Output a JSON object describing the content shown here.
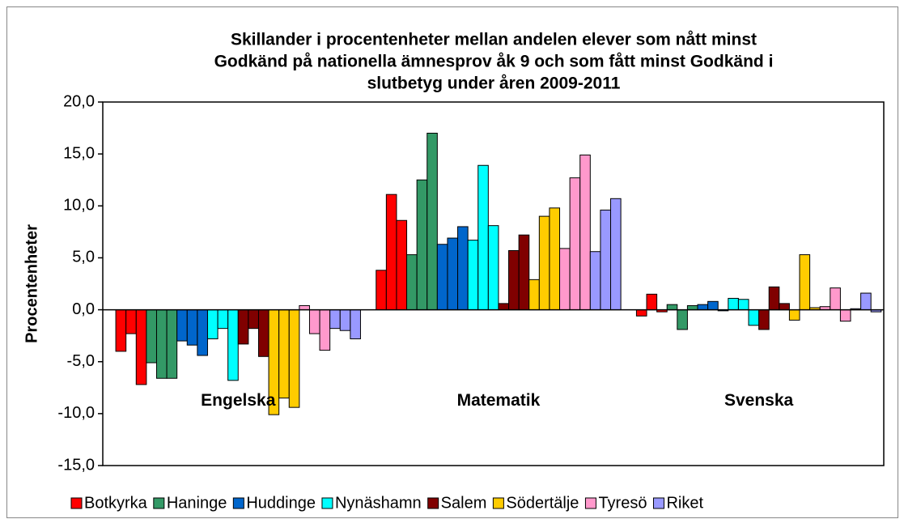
{
  "chart_data": {
    "type": "bar",
    "title": [
      "Skillander i procentenheter mellan andelen elever som nått minst",
      "Godkänd på nationella ämnesprov åk 9 och som fått minst Godkänd i",
      "slutbetyg under åren 2009-2011"
    ],
    "y_label": "Procentenheter",
    "categories": [
      "Engelska",
      "Matematik",
      "Svenska"
    ],
    "series": [
      {
        "name": "Botkyrka",
        "color": "#ff0000",
        "values": [
          [
            -4.0,
            -2.3,
            -7.2
          ],
          [
            3.8,
            11.1,
            8.6
          ],
          [
            -0.6,
            1.5,
            -0.2
          ]
        ]
      },
      {
        "name": "Haninge",
        "color": "#339966",
        "values": [
          [
            -5.1,
            -6.6,
            -6.6
          ],
          [
            5.3,
            12.5,
            17.0
          ],
          [
            0.5,
            -1.9,
            0.4
          ]
        ]
      },
      {
        "name": "Huddinge",
        "color": "#0066cc",
        "values": [
          [
            -3.0,
            -3.4,
            -4.4
          ],
          [
            6.3,
            6.9,
            8.0
          ],
          [
            0.5,
            0.8,
            -0.1
          ]
        ]
      },
      {
        "name": "Nynäshamn",
        "color": "#00ffff",
        "values": [
          [
            -2.8,
            -1.8,
            -6.8
          ],
          [
            6.7,
            13.9,
            8.1
          ],
          [
            1.1,
            1.0,
            -1.5
          ]
        ]
      },
      {
        "name": "Salem",
        "color": "#800000",
        "values": [
          [
            -3.3,
            -1.8,
            -4.5
          ],
          [
            0.6,
            5.7,
            7.2
          ],
          [
            -1.9,
            2.2,
            0.6
          ]
        ]
      },
      {
        "name": "Södertälje",
        "color": "#ffcc00",
        "values": [
          [
            -10.1,
            -8.5,
            -9.4
          ],
          [
            2.9,
            9.0,
            9.8
          ],
          [
            -1.0,
            5.3,
            0.2
          ]
        ]
      },
      {
        "name": "Tyresö",
        "color": "#ff99cc",
        "values": [
          [
            0.4,
            -2.3,
            -3.9
          ],
          [
            5.9,
            12.7,
            14.9
          ],
          [
            0.3,
            2.1,
            -1.1
          ]
        ]
      },
      {
        "name": "Riket",
        "color": "#9999ff",
        "values": [
          [
            -1.8,
            -2.0,
            -2.8
          ],
          [
            5.6,
            9.6,
            10.7
          ],
          [
            0.1,
            1.6,
            -0.2
          ]
        ]
      }
    ],
    "ylim": [
      -15,
      20
    ],
    "yticks": [
      {
        "value": -15,
        "label": "-15,0"
      },
      {
        "value": -10,
        "label": "-10,0"
      },
      {
        "value": -5,
        "label": "-5,0"
      },
      {
        "value": 0,
        "label": "0,0"
      },
      {
        "value": 5,
        "label": "5,0"
      },
      {
        "value": 10,
        "label": "10,0"
      },
      {
        "value": 15,
        "label": "15,0"
      },
      {
        "value": 20,
        "label": "20,0"
      }
    ],
    "category_label_y": -8.8,
    "grid": false
  }
}
